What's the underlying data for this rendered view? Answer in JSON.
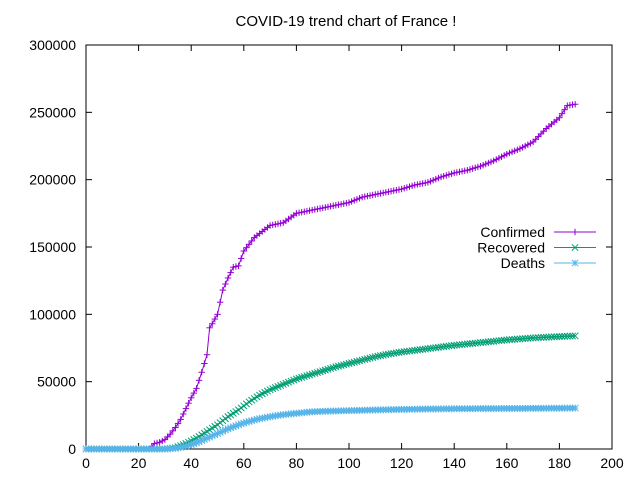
{
  "chart_data": {
    "type": "line",
    "title": "COVID-19 trend chart of France !",
    "xlabel": "",
    "ylabel": "",
    "xlim": [
      0,
      200
    ],
    "ylim": [
      0,
      300000
    ],
    "x_ticks": [
      "0",
      "20",
      "40",
      "60",
      "80",
      "100",
      "120",
      "140",
      "160",
      "180",
      "200"
    ],
    "y_ticks": [
      "0",
      "50000",
      "100000",
      "150000",
      "200000",
      "250000",
      "300000"
    ],
    "grid": false,
    "legend_position": "right",
    "series": [
      {
        "name": "Confirmed",
        "color": "#9400d3",
        "marker": "plus",
        "points": [
          [
            0,
            0
          ],
          [
            10,
            0
          ],
          [
            20,
            0
          ],
          [
            24,
            100
          ],
          [
            26,
            4000
          ],
          [
            28,
            5000
          ],
          [
            30,
            7000
          ],
          [
            32,
            11000
          ],
          [
            34,
            16000
          ],
          [
            36,
            22000
          ],
          [
            38,
            30000
          ],
          [
            40,
            38000
          ],
          [
            42,
            45000
          ],
          [
            44,
            57000
          ],
          [
            46,
            70000
          ],
          [
            47,
            90000
          ],
          [
            48,
            93000
          ],
          [
            50,
            100000
          ],
          [
            52,
            118000
          ],
          [
            54,
            127000
          ],
          [
            56,
            135000
          ],
          [
            58,
            136000
          ],
          [
            60,
            147000
          ],
          [
            62,
            152000
          ],
          [
            64,
            157000
          ],
          [
            66,
            160000
          ],
          [
            70,
            166000
          ],
          [
            75,
            168000
          ],
          [
            80,
            175000
          ],
          [
            85,
            177000
          ],
          [
            90,
            179000
          ],
          [
            95,
            181000
          ],
          [
            100,
            183000
          ],
          [
            105,
            187000
          ],
          [
            110,
            189000
          ],
          [
            115,
            191000
          ],
          [
            120,
            193000
          ],
          [
            125,
            196000
          ],
          [
            130,
            198000
          ],
          [
            135,
            202000
          ],
          [
            140,
            205000
          ],
          [
            145,
            207000
          ],
          [
            150,
            210000
          ],
          [
            155,
            214000
          ],
          [
            160,
            219000
          ],
          [
            165,
            223000
          ],
          [
            170,
            228000
          ],
          [
            175,
            238000
          ],
          [
            180,
            246000
          ],
          [
            183,
            255000
          ],
          [
            186,
            256000
          ]
        ]
      },
      {
        "name": "Recovered",
        "color": "#009e73",
        "marker": "cross",
        "points": [
          [
            0,
            0
          ],
          [
            20,
            0
          ],
          [
            30,
            0
          ],
          [
            34,
            1000
          ],
          [
            38,
            4000
          ],
          [
            42,
            8000
          ],
          [
            46,
            13000
          ],
          [
            50,
            18000
          ],
          [
            54,
            24000
          ],
          [
            58,
            29000
          ],
          [
            62,
            35000
          ],
          [
            66,
            40000
          ],
          [
            70,
            44000
          ],
          [
            75,
            48000
          ],
          [
            80,
            52000
          ],
          [
            85,
            55000
          ],
          [
            90,
            58000
          ],
          [
            95,
            61000
          ],
          [
            100,
            63500
          ],
          [
            105,
            66000
          ],
          [
            110,
            68500
          ],
          [
            115,
            70500
          ],
          [
            120,
            72000
          ],
          [
            130,
            74500
          ],
          [
            140,
            77000
          ],
          [
            150,
            79000
          ],
          [
            160,
            81000
          ],
          [
            170,
            82500
          ],
          [
            180,
            83500
          ],
          [
            186,
            84000
          ]
        ]
      },
      {
        "name": "Deaths",
        "color": "#56b4e9",
        "marker": "star",
        "points": [
          [
            0,
            0
          ],
          [
            20,
            0
          ],
          [
            30,
            0
          ],
          [
            34,
            500
          ],
          [
            38,
            2000
          ],
          [
            42,
            4500
          ],
          [
            46,
            8000
          ],
          [
            50,
            11500
          ],
          [
            54,
            15000
          ],
          [
            58,
            18000
          ],
          [
            62,
            20500
          ],
          [
            66,
            22500
          ],
          [
            70,
            24000
          ],
          [
            75,
            25500
          ],
          [
            80,
            26500
          ],
          [
            85,
            27500
          ],
          [
            90,
            28000
          ],
          [
            100,
            28500
          ],
          [
            110,
            29000
          ],
          [
            120,
            29400
          ],
          [
            130,
            29700
          ],
          [
            140,
            29900
          ],
          [
            150,
            30000
          ],
          [
            160,
            30100
          ],
          [
            170,
            30200
          ],
          [
            180,
            30300
          ],
          [
            186,
            30400
          ]
        ]
      }
    ]
  }
}
